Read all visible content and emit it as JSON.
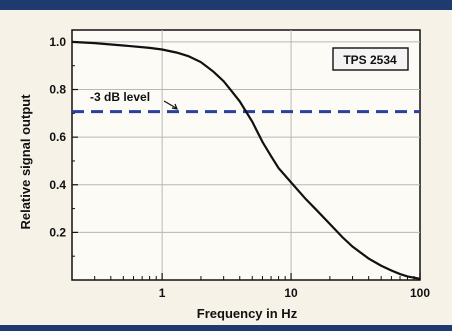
{
  "colors": {
    "background": "#f6f2e8",
    "border": "#1f3a6e",
    "plot_bg": "#fcfbf6",
    "curve": "#111111",
    "threshold": "#2b3f9e",
    "grid": "#b8b8b8"
  },
  "chart_data": {
    "type": "line",
    "title": "",
    "xlabel": "Frequency in Hz",
    "ylabel": "Relative signal output",
    "x_scale": "log",
    "xlim": [
      0.2,
      100
    ],
    "ylim": [
      0,
      1.05
    ],
    "x_ticks": [
      {
        "value": 1,
        "label": "1"
      },
      {
        "value": 10,
        "label": "10"
      },
      {
        "value": 100,
        "label": "100"
      }
    ],
    "y_ticks": [
      {
        "value": 0.2,
        "label": "0.2"
      },
      {
        "value": 0.4,
        "label": "0.4"
      },
      {
        "value": 0.6,
        "label": "0.6"
      },
      {
        "value": 0.8,
        "label": "0.8"
      },
      {
        "value": 1.0,
        "label": "1.0"
      }
    ],
    "grid": true,
    "legend_box": "TPS 2534",
    "series": [
      {
        "x": [
          0.2,
          0.3,
          0.5,
          0.8,
          1.0,
          1.3,
          1.6,
          2.0,
          2.5,
          3.0,
          3.5,
          4.0,
          5.0,
          6.0,
          7.0,
          8.0,
          10,
          13,
          16,
          20,
          25,
          30,
          40,
          50,
          60,
          70,
          80,
          100
        ],
        "y": [
          1.0,
          0.995,
          0.985,
          0.975,
          0.968,
          0.955,
          0.94,
          0.915,
          0.875,
          0.835,
          0.79,
          0.75,
          0.665,
          0.58,
          0.52,
          0.47,
          0.41,
          0.34,
          0.29,
          0.235,
          0.18,
          0.14,
          0.09,
          0.06,
          0.04,
          0.025,
          0.015,
          0.005
        ]
      }
    ],
    "threshold": {
      "y": 0.707,
      "label": "-3 dB level",
      "style": "dashed"
    }
  }
}
